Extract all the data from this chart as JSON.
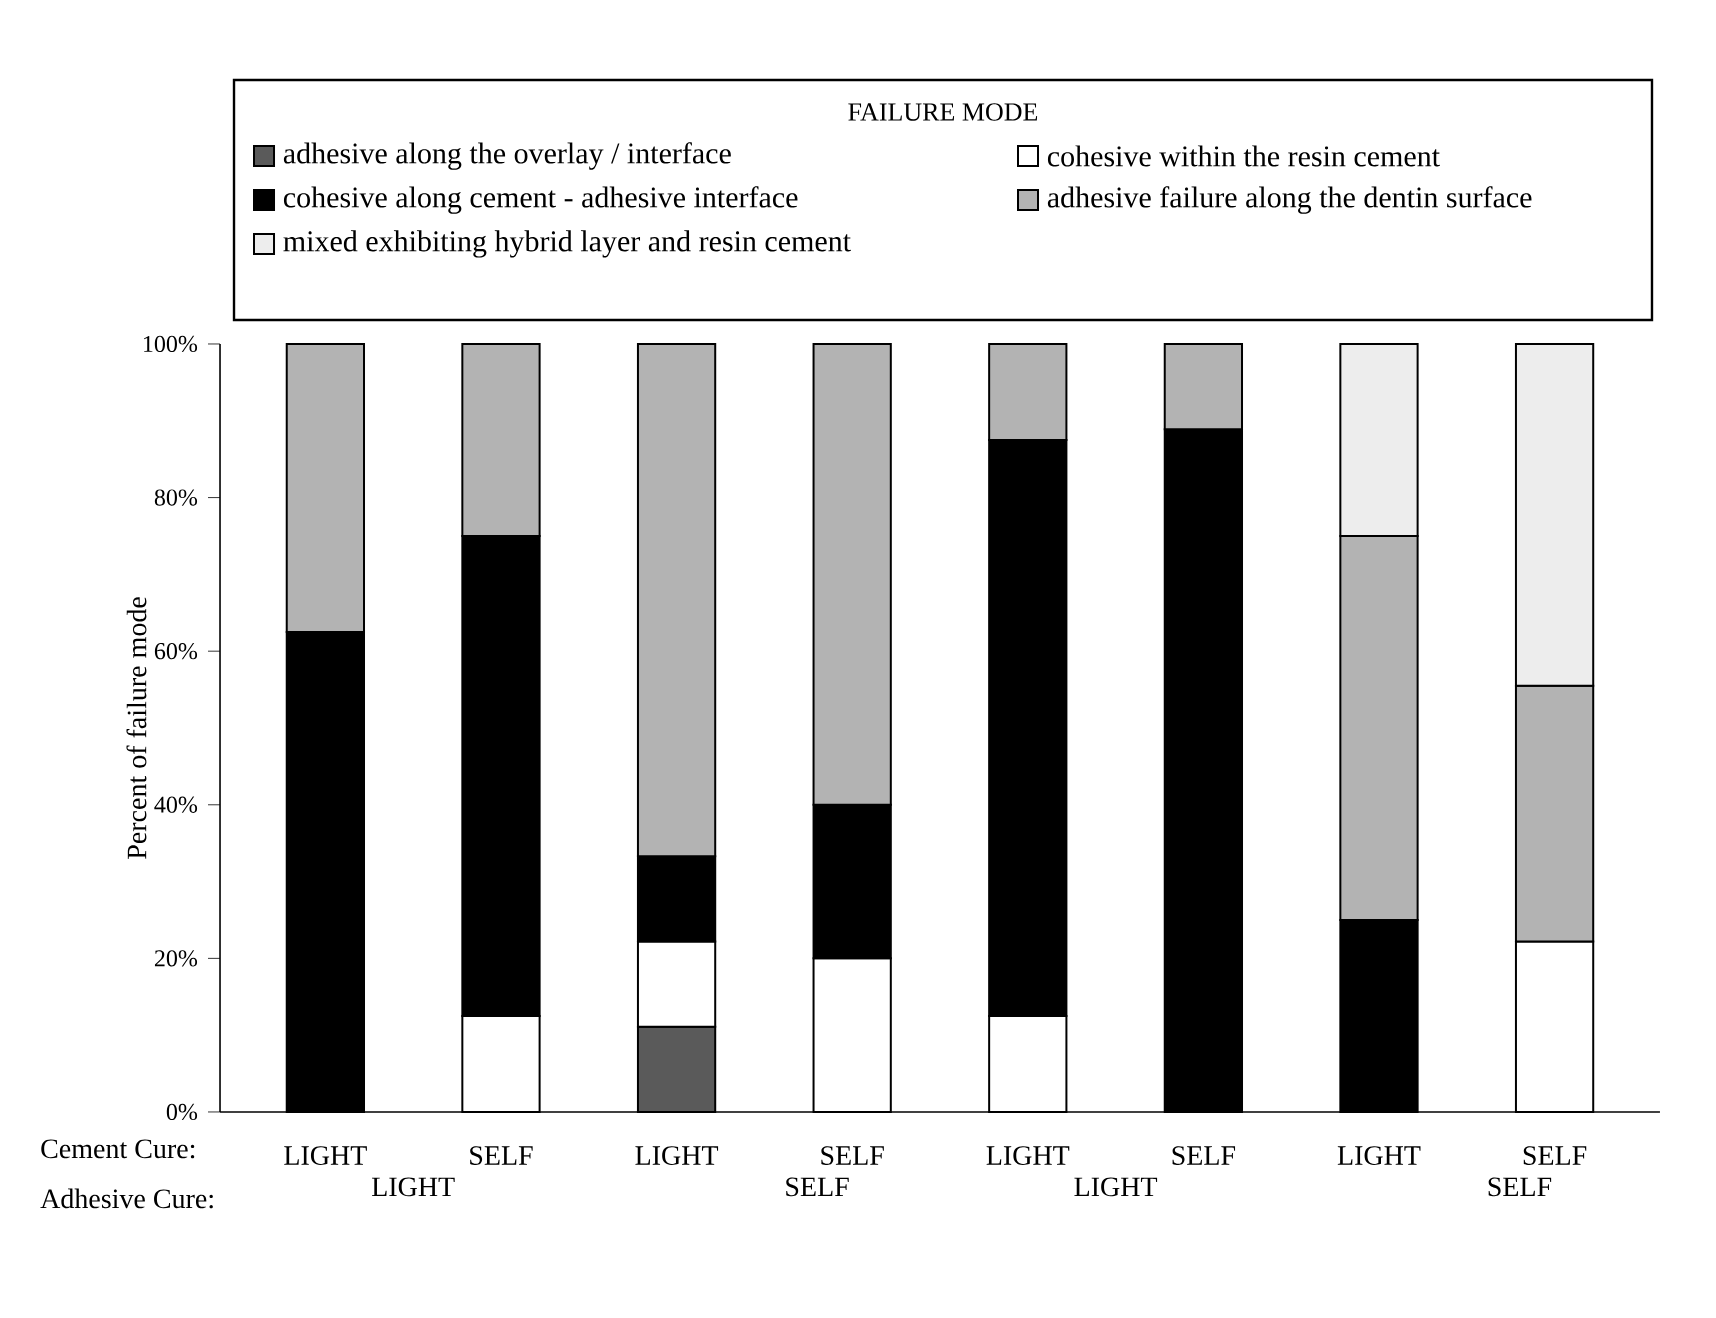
{
  "chart_data": {
    "type": "bar",
    "stacked": true,
    "ylabel": "Percent of failure mode",
    "legend_title": "FAILURE MODE",
    "legend": "top",
    "categories": [
      "LIGHT",
      "SELF",
      "LIGHT",
      "SELF",
      "LIGHT",
      "SELF",
      "LIGHT",
      "SELF"
    ],
    "ylim": [
      0,
      100
    ],
    "yticks": [
      {
        "value": 0,
        "label": "0%"
      },
      {
        "value": 20,
        "label": "20%"
      },
      {
        "value": 40,
        "label": "40%"
      },
      {
        "value": 60,
        "label": "60%"
      },
      {
        "value": 80,
        "label": "80%"
      },
      {
        "value": 100,
        "label": "100%"
      }
    ],
    "annotations": [
      "Cement Cure:",
      "Adhesive Cure:",
      "LIGHT",
      "SELF",
      "LIGHT",
      "SELF"
    ],
    "series": [
      {
        "name": "adhesive along the overlay / interface",
        "color": "#5a5a5a",
        "values": [
          null,
          null,
          11.1,
          null,
          null,
          null,
          null,
          null
        ]
      },
      {
        "name": "cohesive within the resin cement",
        "color": "#ffffff",
        "values": [
          null,
          12.5,
          11.1,
          20,
          12.5,
          null,
          null,
          22.2
        ]
      },
      {
        "name": "cohesive along cement - adhesive interface",
        "color": "#000000",
        "values": [
          62.5,
          62.5,
          11.1,
          20,
          75,
          88.9,
          25,
          null
        ]
      },
      {
        "name": "adhesive failure along the dentin surface",
        "color": "#b3b3b3",
        "values": [
          37.5,
          25,
          66.7,
          60,
          12.5,
          11.1,
          50,
          33.3
        ]
      },
      {
        "name": "mixed exhibiting hybrid layer and resin cement",
        "color": "#ededed",
        "values": [
          null,
          null,
          null,
          null,
          null,
          null,
          25,
          44.5
        ]
      }
    ]
  }
}
